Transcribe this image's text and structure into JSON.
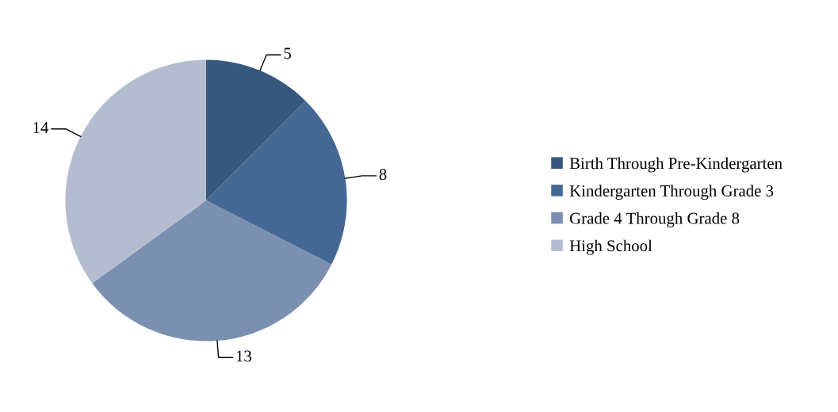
{
  "chart_data": {
    "type": "pie",
    "categories": [
      "Birth Through Pre-Kindergarten",
      "Kindergarten Through Grade 3",
      "Grade 4 Through Grade 8",
      "High School"
    ],
    "values": [
      5,
      8,
      13,
      14
    ],
    "colors": [
      "#36587f",
      "#446893",
      "#7b8fb0",
      "#b4bdd0"
    ],
    "data_labels": true,
    "legend": "right"
  }
}
